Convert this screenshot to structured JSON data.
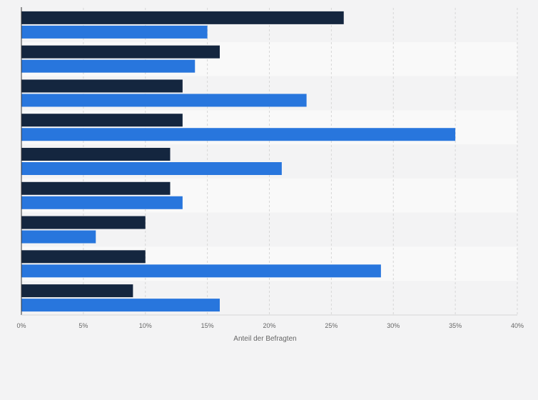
{
  "chart_data": {
    "type": "bar",
    "orientation": "horizontal",
    "categories": [
      "",
      "",
      "",
      "",
      "",
      "",
      "",
      "",
      ""
    ],
    "series": [
      {
        "color": "#14263f",
        "values": [
          26,
          16,
          13,
          13,
          12,
          12,
          10,
          10,
          9
        ]
      },
      {
        "color": "#2876dd",
        "values": [
          15,
          14,
          23,
          35,
          21,
          13,
          6,
          29,
          16
        ]
      }
    ],
    "xlabel": "Anteil der Befragten",
    "ylabel": "",
    "xlim": [
      0,
      40
    ],
    "xticks": [
      "0%",
      "5%",
      "10%",
      "15%",
      "20%",
      "25%",
      "30%",
      "35%",
      "40%"
    ],
    "grid": true,
    "legend": "none",
    "colors": {
      "background": "#f3f3f4",
      "band_alt": "#f9f9f9",
      "grid": "#d6d6d6",
      "axis": "#333333"
    }
  }
}
